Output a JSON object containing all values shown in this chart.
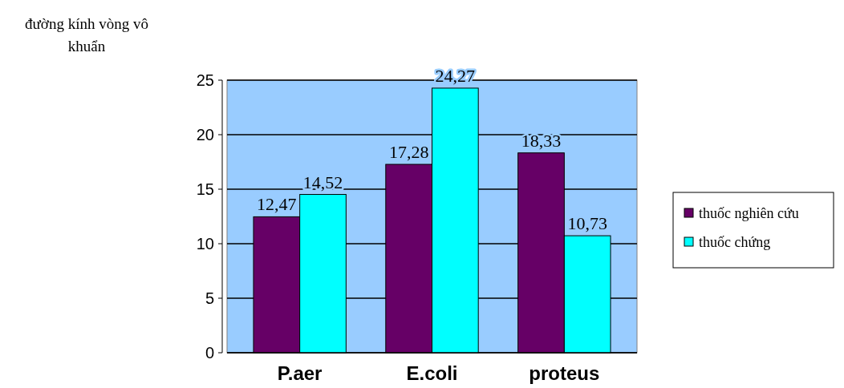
{
  "chart_data": {
    "type": "bar",
    "ylabel": "đường kính vòng vô khuẩn",
    "categories": [
      "P.aer",
      "E.coli",
      "proteus"
    ],
    "series": [
      {
        "name": "thuốc nghiên cứu",
        "color": "#660066",
        "values": [
          12.47,
          17.28,
          18.33
        ],
        "value_labels": [
          "12,47",
          "17,28",
          "18,33"
        ]
      },
      {
        "name": "thuốc chứng",
        "color": "#00ffff",
        "values": [
          14.52,
          24.27,
          10.73
        ],
        "value_labels": [
          "14,52",
          "24,27",
          "10,73"
        ]
      }
    ],
    "ylim": [
      0,
      25
    ],
    "yticks": [
      0,
      5,
      10,
      15,
      20,
      25
    ],
    "grid": "y",
    "legend": "right"
  }
}
